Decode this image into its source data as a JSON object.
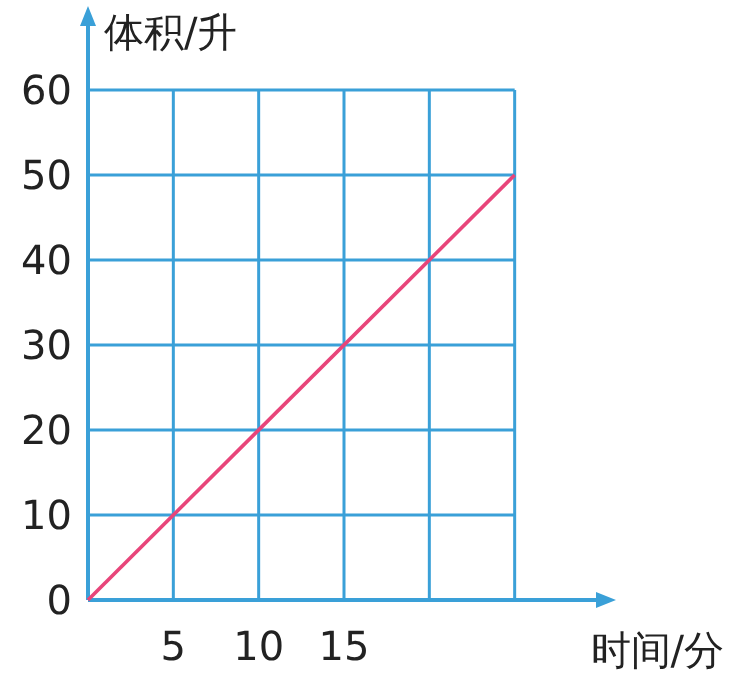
{
  "chart_data": {
    "type": "line",
    "xlabel": "时间/分",
    "ylabel": "体积/升",
    "x": [
      0,
      25
    ],
    "series": [
      {
        "color": "#e8457a",
        "values": [
          0,
          50
        ]
      }
    ],
    "xlim": [
      0,
      30
    ],
    "ylim": [
      0,
      68
    ],
    "xticks": [
      5,
      10,
      15,
      {
        "value": 20,
        "label": null
      },
      {
        "value": 25,
        "label": null
      }
    ],
    "yticks": [
      0,
      10,
      20,
      30,
      40,
      50,
      60
    ],
    "grid": true,
    "marker": "none",
    "line_style": "solid"
  }
}
